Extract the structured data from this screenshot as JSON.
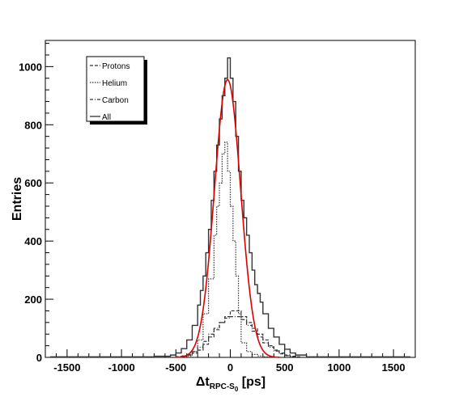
{
  "chart_data": {
    "type": "line",
    "title": "",
    "xlabel": "Δt",
    "xlabel_sub": "RPC-S",
    "xlabel_subsub": "0",
    "xlabel_unit": " [ps]",
    "ylabel": "Entries",
    "xlim": [
      -1700,
      1700
    ],
    "ylim": [
      0,
      1090
    ],
    "x_ticks": [
      -1500,
      -1000,
      -500,
      0,
      500,
      1000,
      1500
    ],
    "y_ticks": [
      0,
      200,
      400,
      600,
      800,
      1000
    ],
    "legend_position": "top-left",
    "bin_width": 25,
    "series": [
      {
        "name": "Protons",
        "style": "dashed",
        "color": "#333333",
        "edges": [
          -500,
          -450,
          -400,
          -350,
          -300,
          -250,
          -200,
          -150,
          -100,
          -50,
          0,
          50,
          100,
          150,
          200,
          250,
          300,
          350,
          400,
          450,
          500,
          550,
          600,
          650
        ],
        "counts": [
          2,
          4,
          8,
          15,
          25,
          45,
          70,
          95,
          120,
          140,
          160,
          160,
          140,
          120,
          100,
          80,
          60,
          40,
          25,
          15,
          8,
          4,
          2
        ]
      },
      {
        "name": "Helium",
        "style": "dotted",
        "color": "#333333",
        "edges": [
          -400,
          -350,
          -300,
          -250,
          -200,
          -150,
          -125,
          -100,
          -75,
          -50,
          -25,
          0,
          25,
          50,
          75,
          100,
          150,
          200,
          250,
          300,
          350,
          400
        ],
        "counts": [
          5,
          20,
          60,
          150,
          270,
          420,
          520,
          600,
          700,
          740,
          640,
          520,
          400,
          280,
          150,
          50,
          20,
          10,
          5,
          2,
          1
        ]
      },
      {
        "name": "Carbon",
        "style": "dashdot",
        "color": "#333333",
        "edges": [
          -500,
          -450,
          -400,
          -350,
          -300,
          -250,
          -200,
          -150,
          -100,
          -50,
          0,
          50,
          100,
          150,
          200,
          250,
          300,
          350,
          400,
          450,
          500,
          550,
          600
        ],
        "counts": [
          2,
          5,
          10,
          20,
          35,
          55,
          80,
          100,
          120,
          135,
          140,
          140,
          130,
          110,
          90,
          70,
          50,
          35,
          22,
          12,
          6,
          3
        ]
      },
      {
        "name": "All",
        "style": "solid",
        "color": "#333333",
        "edges": [
          -1650,
          -700,
          -550,
          -500,
          -450,
          -400,
          -350,
          -300,
          -275,
          -250,
          -225,
          -200,
          -175,
          -150,
          -125,
          -100,
          -75,
          -50,
          -25,
          0,
          25,
          50,
          75,
          100,
          125,
          150,
          175,
          200,
          225,
          250,
          275,
          300,
          350,
          400,
          450,
          500,
          550,
          600,
          700,
          1650
        ],
        "counts": [
          2,
          4,
          8,
          15,
          30,
          60,
          110,
          180,
          230,
          280,
          360,
          440,
          540,
          640,
          730,
          820,
          900,
          960,
          1030,
          960,
          880,
          760,
          640,
          540,
          480,
          420,
          360,
          300,
          250,
          220,
          190,
          150,
          100,
          70,
          45,
          28,
          15,
          8,
          2
        ]
      },
      {
        "name": "",
        "style": "fit",
        "color": "#dd0000",
        "gauss": {
          "mean": -25,
          "sigma": 120,
          "amplitude": 955
        }
      }
    ]
  }
}
